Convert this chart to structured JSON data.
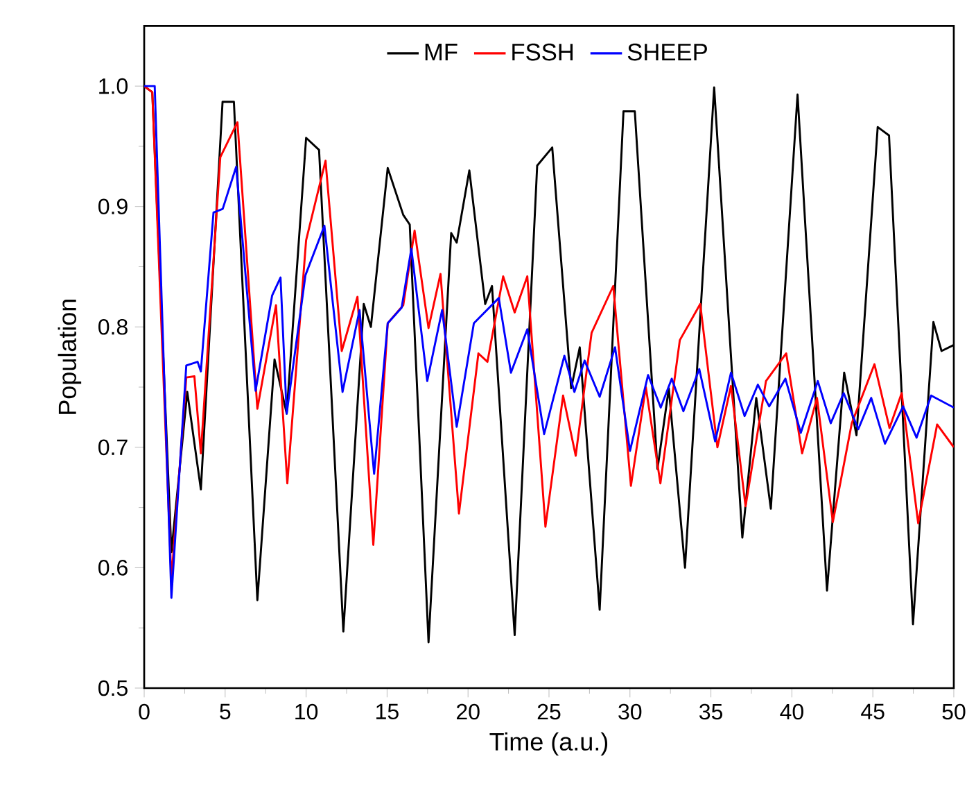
{
  "chart_data": {
    "type": "line",
    "xlabel": "Time (a.u.)",
    "ylabel": "Population",
    "xlim": [
      0,
      50
    ],
    "ylim": [
      0.5,
      1.05
    ],
    "xticks": [
      0,
      5,
      10,
      15,
      20,
      25,
      30,
      35,
      40,
      45,
      50
    ],
    "yticks": [
      {
        "value": 0.5,
        "label": "0.5"
      },
      {
        "value": 0.6,
        "label": "0.6"
      },
      {
        "value": 0.7,
        "label": "0.7"
      },
      {
        "value": 0.8,
        "label": "0.8"
      },
      {
        "value": 0.9,
        "label": "0.9"
      },
      {
        "value": 1.0,
        "label": "1.0"
      }
    ],
    "legend": "top",
    "grid": false,
    "marker": "none",
    "line_style": "solid",
    "series": [
      {
        "name": "MF",
        "color": "#000000",
        "x": [
          0,
          0.5,
          1.68,
          2.66,
          3.5,
          4.84,
          5.54,
          6.99,
          8.05,
          8.8,
          10.0,
          10.8,
          12.3,
          13.56,
          14.0,
          15.04,
          16.0,
          16.4,
          17.56,
          18.96,
          19.3,
          20.08,
          21.06,
          21.48,
          22.88,
          24.27,
          25.2,
          26.37,
          26.9,
          28.13,
          29.6,
          30.3,
          31.7,
          32.4,
          33.4,
          35.2,
          36.94,
          37.8,
          38.7,
          40.35,
          42.17,
          43.23,
          43.99,
          45.3,
          46.0,
          47.48,
          48.74,
          49.24,
          50
        ],
        "values": [
          1.0,
          0.995,
          0.613,
          0.746,
          0.665,
          0.987,
          0.987,
          0.573,
          0.773,
          0.728,
          0.957,
          0.947,
          0.547,
          0.819,
          0.8,
          0.932,
          0.893,
          0.885,
          0.538,
          0.878,
          0.87,
          0.93,
          0.819,
          0.834,
          0.544,
          0.934,
          0.949,
          0.749,
          0.783,
          0.565,
          0.979,
          0.979,
          0.682,
          0.749,
          0.6,
          0.999,
          0.625,
          0.741,
          0.649,
          0.993,
          0.581,
          0.762,
          0.71,
          0.966,
          0.959,
          0.553,
          0.804,
          0.78,
          0.785
        ]
      },
      {
        "name": "FSSH",
        "color": "#ff0000",
        "x": [
          0,
          0.5,
          1.68,
          2.6,
          3.1,
          3.5,
          4.7,
          5.76,
          6.99,
          8.14,
          8.84,
          10.0,
          11.2,
          12.2,
          13.17,
          14.15,
          15.04,
          16.0,
          16.7,
          17.56,
          18.3,
          19.44,
          20.64,
          21.2,
          22.17,
          22.88,
          23.66,
          24.78,
          25.87,
          26.65,
          27.63,
          28.97,
          30.06,
          30.98,
          31.88,
          33.08,
          34.34,
          35.4,
          36.24,
          37.14,
          38.4,
          39.65,
          40.63,
          41.55,
          42.53,
          43.7,
          45.1,
          46.03,
          46.78,
          47.8,
          48.97,
          50
        ],
        "values": [
          1.0,
          0.995,
          0.59,
          0.758,
          0.759,
          0.695,
          0.941,
          0.97,
          0.732,
          0.818,
          0.67,
          0.872,
          0.938,
          0.78,
          0.825,
          0.619,
          0.803,
          0.818,
          0.88,
          0.799,
          0.844,
          0.645,
          0.778,
          0.771,
          0.842,
          0.812,
          0.842,
          0.634,
          0.743,
          0.693,
          0.795,
          0.834,
          0.668,
          0.75,
          0.67,
          0.789,
          0.819,
          0.7,
          0.751,
          0.651,
          0.755,
          0.778,
          0.695,
          0.741,
          0.638,
          0.72,
          0.769,
          0.716,
          0.745,
          0.637,
          0.719,
          0.7
        ]
      },
      {
        "name": "SHEEP",
        "color": "#0000ff",
        "x": [
          0,
          0.65,
          1.68,
          2.6,
          3.3,
          3.5,
          4.28,
          4.85,
          5.68,
          6.88,
          7.9,
          8.42,
          8.8,
          9.96,
          11.13,
          12.25,
          13.3,
          14.2,
          15.04,
          15.9,
          16.5,
          17.48,
          18.4,
          19.3,
          20.36,
          21.9,
          22.65,
          23.66,
          24.7,
          25.95,
          26.57,
          27.2,
          28.13,
          29.08,
          30.0,
          31.12,
          31.9,
          32.58,
          33.3,
          34.28,
          35.26,
          36.24,
          37.08,
          37.9,
          38.6,
          39.6,
          40.55,
          41.6,
          42.4,
          43.2,
          44.1,
          44.9,
          45.75,
          46.87,
          47.7,
          48.6,
          50
        ],
        "values": [
          1.0,
          1.0,
          0.575,
          0.768,
          0.771,
          0.763,
          0.895,
          0.898,
          0.933,
          0.747,
          0.826,
          0.841,
          0.728,
          0.843,
          0.884,
          0.746,
          0.814,
          0.678,
          0.803,
          0.816,
          0.865,
          0.755,
          0.814,
          0.717,
          0.803,
          0.824,
          0.762,
          0.798,
          0.711,
          0.776,
          0.746,
          0.772,
          0.742,
          0.783,
          0.697,
          0.76,
          0.733,
          0.757,
          0.73,
          0.765,
          0.705,
          0.762,
          0.726,
          0.752,
          0.734,
          0.757,
          0.712,
          0.755,
          0.72,
          0.745,
          0.715,
          0.741,
          0.703,
          0.734,
          0.708,
          0.743,
          0.733
        ]
      }
    ]
  }
}
